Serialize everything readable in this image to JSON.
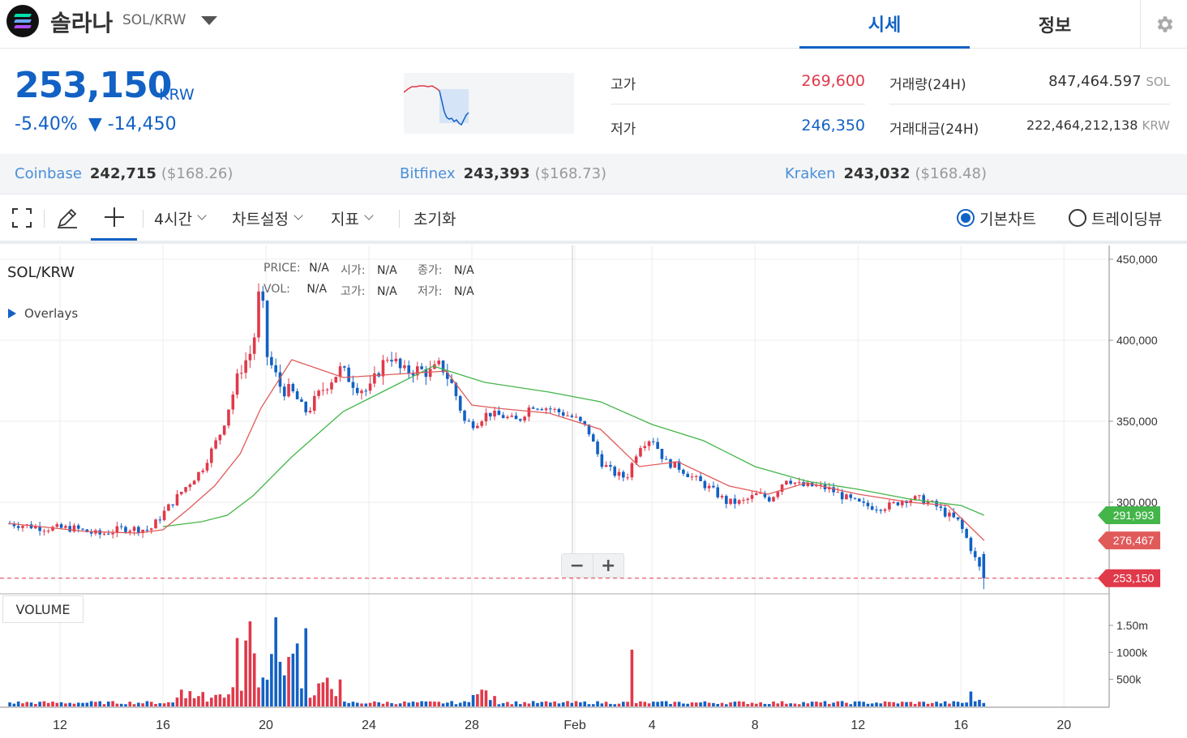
{
  "header": {
    "coin_name": "솔라나",
    "pair": "SOL/KRW",
    "tabs": [
      "시세",
      "정보"
    ]
  },
  "summary": {
    "price": "253,150",
    "price_unit": "KRW",
    "change_pct": "-5.40%",
    "change_abs": "▼ -14,450",
    "high_label": "고가",
    "high_value": "269,600",
    "low_label": "저가",
    "low_value": "246,350",
    "volume_label": "거래량(24H)",
    "volume_value": "847,464.597",
    "volume_unit": "SOL",
    "turnover_label": "거래대금(24H)",
    "turnover_value": "222,464,212,138",
    "turnover_unit": "KRW"
  },
  "exchanges": [
    {
      "name": "Coinbase",
      "krw": "242,715",
      "usd": "($168.26)"
    },
    {
      "name": "Bitfinex",
      "krw": "243,393",
      "usd": "($168.73)"
    },
    {
      "name": "Kraken",
      "krw": "243,032",
      "usd": "($168.48)"
    }
  ],
  "toolbar": {
    "interval": "4시간",
    "chart_settings": "차트설정",
    "indicators": "지표",
    "reset": "초기화",
    "basic_chart": "기본차트",
    "tradingview": "트레이딩뷰"
  },
  "chart": {
    "symbol": "SOL/KRW",
    "overlays": "Overlays",
    "legend": {
      "price": "PRICE:",
      "vol": "VOL:",
      "open": "시가:",
      "high": "고가:",
      "close": "종가:",
      "low": "저가:",
      "na": "N/A"
    },
    "volume_label": "VOLUME",
    "zoom_out": "−",
    "zoom_in": "+"
  },
  "chart_data": {
    "type": "candlestick",
    "series_marker_labels": [
      {
        "label": "291,993",
        "value": 291993,
        "color": "#43b549"
      },
      {
        "label": "276,467",
        "value": 276467,
        "color": "#e15a5a"
      },
      {
        "label": "253,150",
        "value": 253150,
        "color": "#e0394a"
      }
    ],
    "y_ticks": [
      "450,000",
      "400,000",
      "350,000",
      "300,000"
    ],
    "y_tick_values": [
      450000,
      400000,
      350000,
      300000
    ],
    "volume_ticks": [
      "1.50m",
      "1000k",
      "500k"
    ],
    "volume_tick_values": [
      1500000,
      1000000,
      500000
    ],
    "x_ticks": [
      "12",
      "16",
      "20",
      "24",
      "28",
      "Feb",
      "4",
      "8",
      "12",
      "16",
      "20"
    ],
    "close_path": [
      [
        10,
        287000
      ],
      [
        11.5,
        284000
      ],
      [
        12.5,
        284000
      ],
      [
        13.5,
        280000
      ],
      [
        14.5,
        284000
      ],
      [
        15.5,
        283000
      ],
      [
        16,
        293000
      ],
      [
        16.8,
        308000
      ],
      [
        17.5,
        320000
      ],
      [
        18.3,
        345000
      ],
      [
        19,
        382000
      ],
      [
        19.5,
        395000
      ],
      [
        19.8,
        440000
      ],
      [
        20,
        392000
      ],
      [
        20.6,
        370000
      ],
      [
        21,
        368000
      ],
      [
        21.6,
        355000
      ],
      [
        22.3,
        372000
      ],
      [
        22.9,
        382000
      ],
      [
        23.5,
        372000
      ],
      [
        24,
        368000
      ],
      [
        24.4,
        382000
      ],
      [
        24.8,
        392000
      ],
      [
        25.3,
        380000
      ],
      [
        25.8,
        382000
      ],
      [
        26.4,
        380000
      ],
      [
        26.8,
        385000
      ],
      [
        27.3,
        370000
      ],
      [
        27.7,
        350000
      ],
      [
        28.1,
        348000
      ],
      [
        28.6,
        355000
      ],
      [
        29.2,
        353000
      ],
      [
        29.8,
        350000
      ],
      [
        30.3,
        360000
      ],
      [
        31,
        358000
      ],
      [
        31.5,
        355000
      ],
      [
        32,
        352000
      ],
      [
        32.5,
        345000
      ],
      [
        33,
        325000
      ],
      [
        33.5,
        318000
      ],
      [
        34,
        315000
      ],
      [
        34.5,
        335000
      ],
      [
        35,
        340000
      ],
      [
        35.5,
        325000
      ],
      [
        36,
        322000
      ],
      [
        36.6,
        315000
      ],
      [
        37.3,
        308000
      ],
      [
        37.9,
        300000
      ],
      [
        38.5,
        300000
      ],
      [
        39.1,
        305000
      ],
      [
        39.6,
        302000
      ],
      [
        40.2,
        315000
      ],
      [
        40.8,
        310000
      ],
      [
        41.4,
        310000
      ],
      [
        41.9,
        308000
      ],
      [
        42.6,
        302000
      ],
      [
        43.2,
        298000
      ],
      [
        43.8,
        297000
      ],
      [
        44.3,
        298000
      ],
      [
        44.8,
        302000
      ],
      [
        45.4,
        302000
      ],
      [
        46,
        298000
      ],
      [
        46.4,
        293000
      ],
      [
        46.9,
        288000
      ],
      [
        47.3,
        275000
      ],
      [
        47.55,
        265000
      ],
      [
        47.9,
        253150
      ]
    ],
    "ma_short": [
      [
        10,
        287000
      ],
      [
        13,
        282000
      ],
      [
        15,
        281000
      ],
      [
        16,
        283000
      ],
      [
        17,
        296000
      ],
      [
        18,
        310000
      ],
      [
        19,
        330000
      ],
      [
        19.8,
        358000
      ],
      [
        21,
        388000
      ],
      [
        23,
        377000
      ],
      [
        25,
        379000
      ],
      [
        27,
        381000
      ],
      [
        28,
        360000
      ],
      [
        29,
        358000
      ],
      [
        31,
        355000
      ],
      [
        33,
        345000
      ],
      [
        34.5,
        322000
      ],
      [
        36,
        325000
      ],
      [
        38,
        310000
      ],
      [
        39.5,
        305000
      ],
      [
        41,
        312000
      ],
      [
        43,
        305000
      ],
      [
        45,
        300000
      ],
      [
        46.5,
        298000
      ],
      [
        47.9,
        276467
      ]
    ],
    "ma_long": [
      [
        16,
        285000
      ],
      [
        17.5,
        288000
      ],
      [
        18.5,
        292000
      ],
      [
        19.5,
        304000
      ],
      [
        21,
        328000
      ],
      [
        23,
        356000
      ],
      [
        25,
        372000
      ],
      [
        26.5,
        384000
      ],
      [
        28.5,
        374000
      ],
      [
        31,
        368000
      ],
      [
        33,
        362000
      ],
      [
        35,
        348000
      ],
      [
        37,
        338000
      ],
      [
        39,
        322000
      ],
      [
        41,
        313000
      ],
      [
        43,
        308000
      ],
      [
        45,
        302000
      ],
      [
        47,
        298000
      ],
      [
        47.9,
        291993
      ]
    ],
    "ylim": [
      240000,
      455000
    ]
  }
}
